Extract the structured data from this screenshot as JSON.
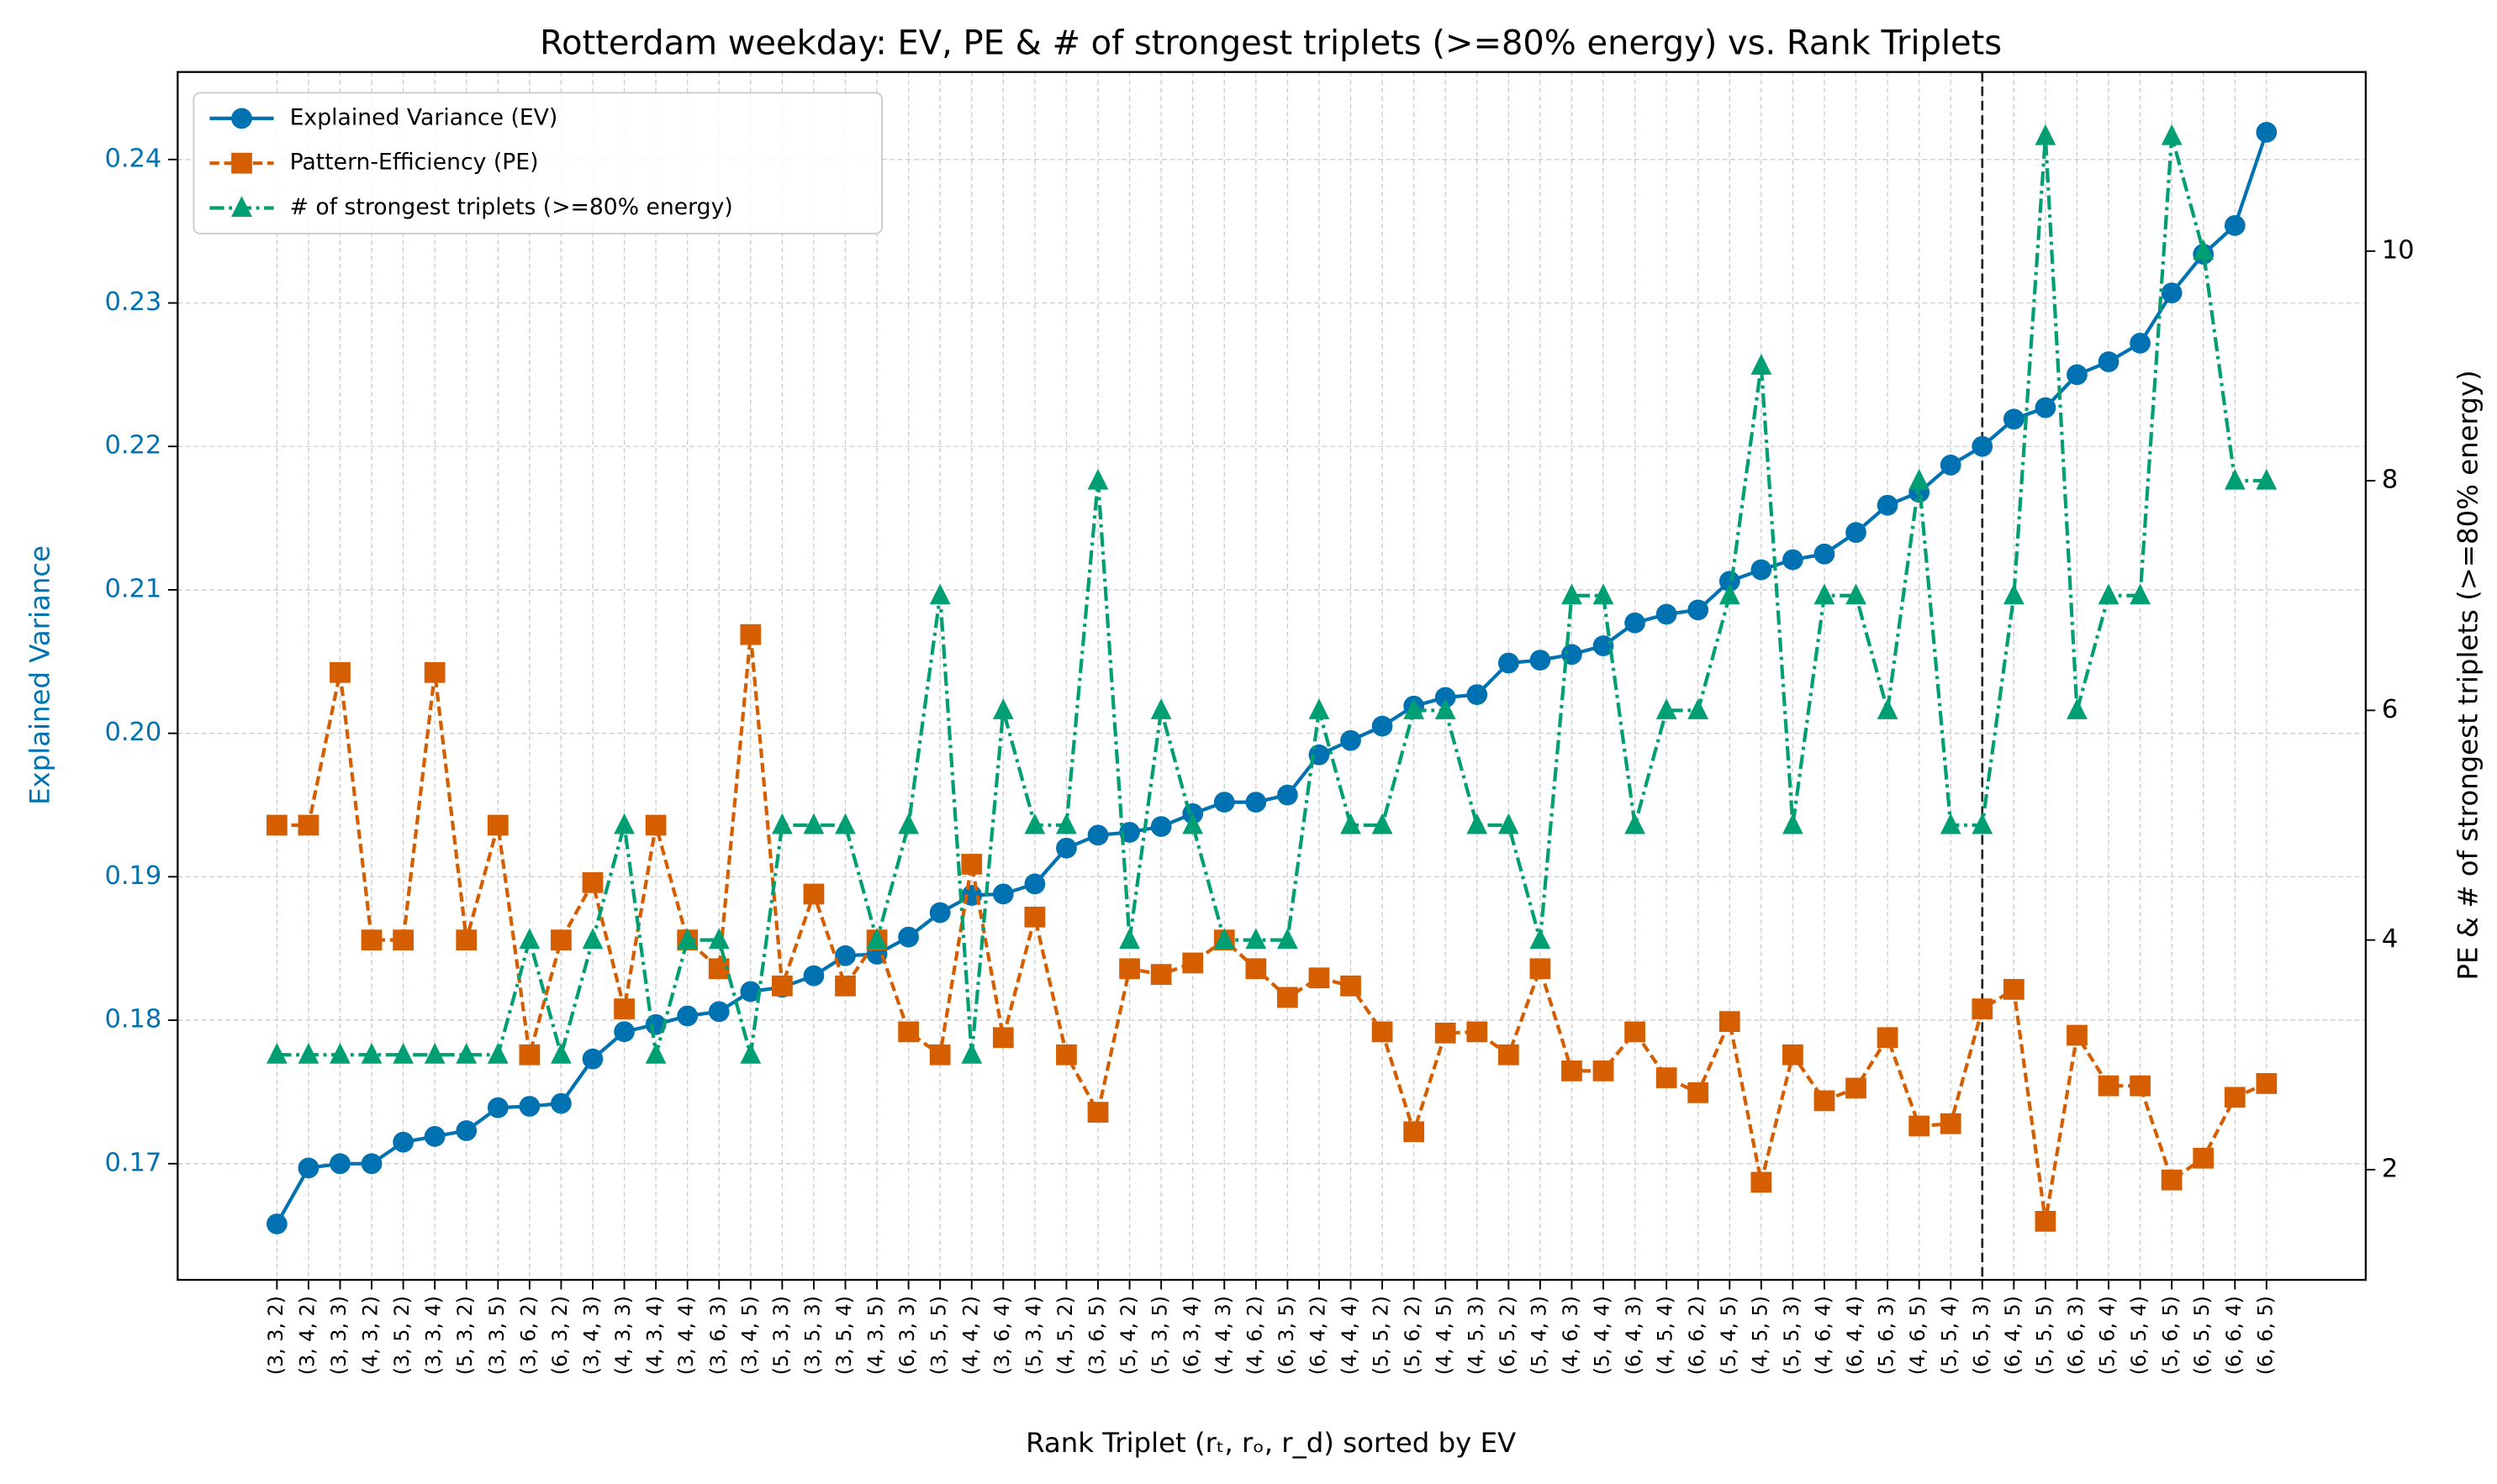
{
  "chart_data": {
    "type": "line",
    "title": "Rotterdam weekday: EV, PE & # of strongest triplets (>=80% energy) vs. Rank Triplets",
    "x_label": "Rank Triplet (rₜ, rₒ, r_d) sorted by EV",
    "y_label": "Explained Variance",
    "y2_label": "PE & # of strongest triplets (>=80% energy)",
    "categories": [
      "(3, 3, 2)",
      "(3, 4, 2)",
      "(3, 3, 3)",
      "(4, 3, 2)",
      "(3, 5, 2)",
      "(3, 3, 4)",
      "(5, 3, 2)",
      "(3, 3, 5)",
      "(3, 6, 2)",
      "(6, 3, 2)",
      "(3, 4, 3)",
      "(4, 3, 3)",
      "(4, 3, 4)",
      "(3, 4, 4)",
      "(3, 6, 3)",
      "(3, 4, 5)",
      "(5, 3, 3)",
      "(3, 5, 3)",
      "(3, 5, 4)",
      "(4, 3, 5)",
      "(6, 3, 3)",
      "(3, 5, 5)",
      "(4, 4, 2)",
      "(3, 6, 4)",
      "(5, 3, 4)",
      "(4, 5, 2)",
      "(3, 6, 5)",
      "(5, 4, 2)",
      "(5, 3, 5)",
      "(6, 3, 4)",
      "(4, 4, 3)",
      "(4, 6, 2)",
      "(6, 3, 5)",
      "(6, 4, 2)",
      "(4, 4, 4)",
      "(5, 5, 2)",
      "(5, 6, 2)",
      "(4, 4, 5)",
      "(4, 5, 3)",
      "(6, 5, 2)",
      "(5, 4, 3)",
      "(4, 6, 3)",
      "(5, 4, 4)",
      "(6, 4, 3)",
      "(4, 5, 4)",
      "(6, 6, 2)",
      "(5, 4, 5)",
      "(4, 5, 5)",
      "(5, 5, 3)",
      "(4, 6, 4)",
      "(6, 4, 4)",
      "(5, 6, 3)",
      "(4, 6, 5)",
      "(5, 5, 4)",
      "(6, 5, 3)",
      "(6, 4, 5)",
      "(5, 5, 5)",
      "(6, 6, 3)",
      "(5, 6, 4)",
      "(6, 5, 4)",
      "(5, 6, 5)",
      "(6, 5, 5)",
      "(6, 6, 4)",
      "(6, 6, 5)"
    ],
    "series": [
      {
        "name": "Explained Variance (EV)",
        "color": "#0072B2",
        "axis": "y",
        "marker": "circle",
        "dash": "solid",
        "values": [
          0.1658,
          0.1697,
          0.17,
          0.17,
          0.1715,
          0.1719,
          0.1723,
          0.1739,
          0.174,
          0.1742,
          0.1773,
          0.1792,
          0.1797,
          0.1803,
          0.1806,
          0.182,
          0.1823,
          0.1831,
          0.1845,
          0.1846,
          0.1858,
          0.1875,
          0.1887,
          0.1888,
          0.1895,
          0.192,
          0.1929,
          0.1931,
          0.1935,
          0.1944,
          0.1952,
          0.1952,
          0.1957,
          0.1985,
          0.1995,
          0.2005,
          0.2019,
          0.2025,
          0.2027,
          0.2049,
          0.2051,
          0.2055,
          0.2061,
          0.2077,
          0.2083,
          0.2086,
          0.2106,
          0.2114,
          0.2121,
          0.2125,
          0.214,
          0.2159,
          0.2168,
          0.2187,
          0.22,
          0.2219,
          0.2227,
          0.225,
          0.2259,
          0.2272,
          0.2307,
          0.2334,
          0.2354,
          0.2419
        ]
      },
      {
        "name": "Pattern-Efficiency (PE)",
        "color": "#D55E00",
        "axis": "y2",
        "marker": "square",
        "dash": "dashed",
        "values": [
          5.0,
          5.0,
          6.33,
          4.0,
          4.0,
          6.33,
          4.0,
          5.0,
          3.0,
          4.0,
          4.5,
          3.4,
          5.0,
          4.0,
          3.75,
          6.66,
          3.6,
          4.4,
          3.6,
          4.0,
          3.2,
          3.0,
          4.66,
          3.15,
          4.2,
          3.0,
          2.5,
          3.75,
          3.7,
          3.8,
          4.0,
          3.75,
          3.5,
          3.67,
          3.6,
          3.2,
          2.33,
          3.19,
          3.2,
          3.0,
          3.75,
          2.86,
          2.86,
          3.2,
          2.8,
          2.67,
          3.29,
          1.89,
          3.0,
          2.6,
          2.71,
          3.15,
          2.38,
          2.4,
          3.4,
          3.57,
          1.55,
          3.17,
          2.73,
          2.73,
          1.91,
          2.1,
          2.63,
          2.75
        ]
      },
      {
        "name": "# of strongest triplets (>=80% energy)",
        "color": "#009E73",
        "axis": "y2",
        "marker": "triangle",
        "dash": "dashdot",
        "values": [
          3,
          3,
          3,
          3,
          3,
          3,
          3,
          3,
          4,
          3,
          4,
          5,
          3,
          4,
          4,
          3,
          5,
          5,
          5,
          4,
          5,
          7,
          3,
          6,
          5,
          5,
          8,
          4,
          6,
          5,
          4,
          4,
          4,
          6,
          5,
          5,
          6,
          6,
          5,
          5,
          4,
          7,
          7,
          5,
          6,
          6,
          7,
          9,
          5,
          7,
          7,
          6,
          8,
          5,
          5,
          7,
          11,
          6,
          7,
          7,
          11,
          10,
          8,
          8
        ]
      }
    ],
    "ylim": [
      0.1619,
      0.2461
    ],
    "yticks": [
      0.17,
      0.18,
      0.19,
      {
        "value": 0.2,
        "label": "0.20"
      },
      0.21,
      0.22,
      0.23,
      0.24
    ],
    "y2lim": [
      1.04,
      11.56
    ],
    "y2ticks": [
      2,
      4,
      6,
      8,
      10
    ],
    "vline_index": 54,
    "grid": true,
    "legend": "upper left"
  }
}
